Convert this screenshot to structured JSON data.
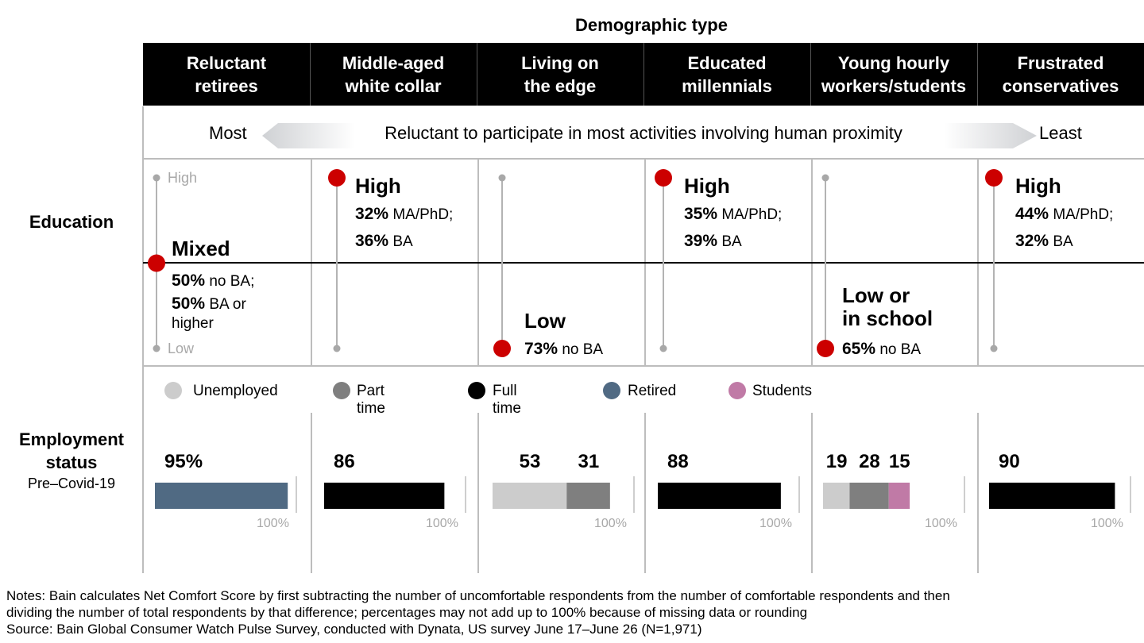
{
  "header": {
    "title": "Demographic type",
    "segments": [
      "Reluctant\nretirees",
      "Middle-aged\nwhite collar",
      "Living on\nthe edge",
      "Educated\nmillennials",
      "Young hourly\nworkers/students",
      "Frustrated\nconservatives"
    ]
  },
  "proximity": {
    "left": "Most",
    "label": "Reluctant to participate in most activities involving human proximity",
    "right": "Least"
  },
  "education": {
    "row_label": "Education",
    "scale_high": "High",
    "scale_low": "Low",
    "items": [
      {
        "level_value": 0.5,
        "title": "Mixed",
        "p1": "50%",
        "t1": "no BA;",
        "p2": "50%",
        "t2": "BA or",
        "t3": "higher"
      },
      {
        "level_value": 1,
        "title": "High",
        "p1": "32%",
        "t1": "MA/PhD;",
        "p2": "36%",
        "t2": "BA",
        "t3": ""
      },
      {
        "level_value": 0,
        "title": "Low",
        "p1": "73%",
        "t1": "no BA",
        "p2": "",
        "t2": "",
        "t3": ""
      },
      {
        "level_value": 1,
        "title": "High",
        "p1": "35%",
        "t1": "MA/PhD;",
        "p2": "39%",
        "t2": "BA",
        "t3": ""
      },
      {
        "level_value": 0,
        "title": "Low or\nin school",
        "p1": "65%",
        "t1": "no BA",
        "p2": "",
        "t2": "",
        "t3": ""
      },
      {
        "level_value": 1,
        "title": "High",
        "p1": "44%",
        "t1": "MA/PhD;",
        "p2": "32%",
        "t2": "BA",
        "t3": ""
      }
    ]
  },
  "employment": {
    "row_label_1": "Employment",
    "row_label_2": "status",
    "sub_label": "Pre–Covid-19",
    "max_label": "100%"
  },
  "colors": {
    "Unemployed": "#cccccc",
    "Part time": "#7f7f7f",
    "Full time": "#000000",
    "Retired": "#506a83",
    "Students": "#c07aa6",
    "dot": "#cc0000"
  },
  "chart_data": {
    "type": "bar",
    "title": "",
    "legend": [
      "Unemployed",
      "Part time",
      "Full time",
      "Retired",
      "Students"
    ],
    "legend_position": "top",
    "categories": [
      "Reluctant retirees",
      "Middle-aged white collar",
      "Living on the edge",
      "Educated millennials",
      "Young hourly workers/students",
      "Frustrated conservatives"
    ],
    "xlim": [
      0,
      100
    ],
    "stacks": [
      [
        {
          "series": "Retired",
          "value": 95,
          "label": "95%"
        }
      ],
      [
        {
          "series": "Full time",
          "value": 86,
          "label": "86"
        }
      ],
      [
        {
          "series": "Unemployed",
          "value": 53,
          "label": "53"
        },
        {
          "series": "Part time",
          "value": 31,
          "label": "31"
        }
      ],
      [
        {
          "series": "Full time",
          "value": 88,
          "label": "88"
        }
      ],
      [
        {
          "series": "Unemployed",
          "value": 19,
          "label": "19"
        },
        {
          "series": "Part time",
          "value": 28,
          "label": "28"
        },
        {
          "series": "Students",
          "value": 15,
          "label": "15"
        }
      ],
      [
        {
          "series": "Full time",
          "value": 90,
          "label": "90"
        }
      ]
    ]
  },
  "notes": {
    "line1": "Notes: Bain calculates Net Comfort Score by first subtracting the number of uncomfortable respondents from the number of comfortable respondents and then",
    "line2": "dividing the number of total respondents by that difference; percentages may not add up to 100% because of missing data or rounding",
    "line3": "Source: Bain Global Consumer Watch Pulse Survey, conducted with Dynata, US survey June 17–June 26 (N=1,971)"
  }
}
